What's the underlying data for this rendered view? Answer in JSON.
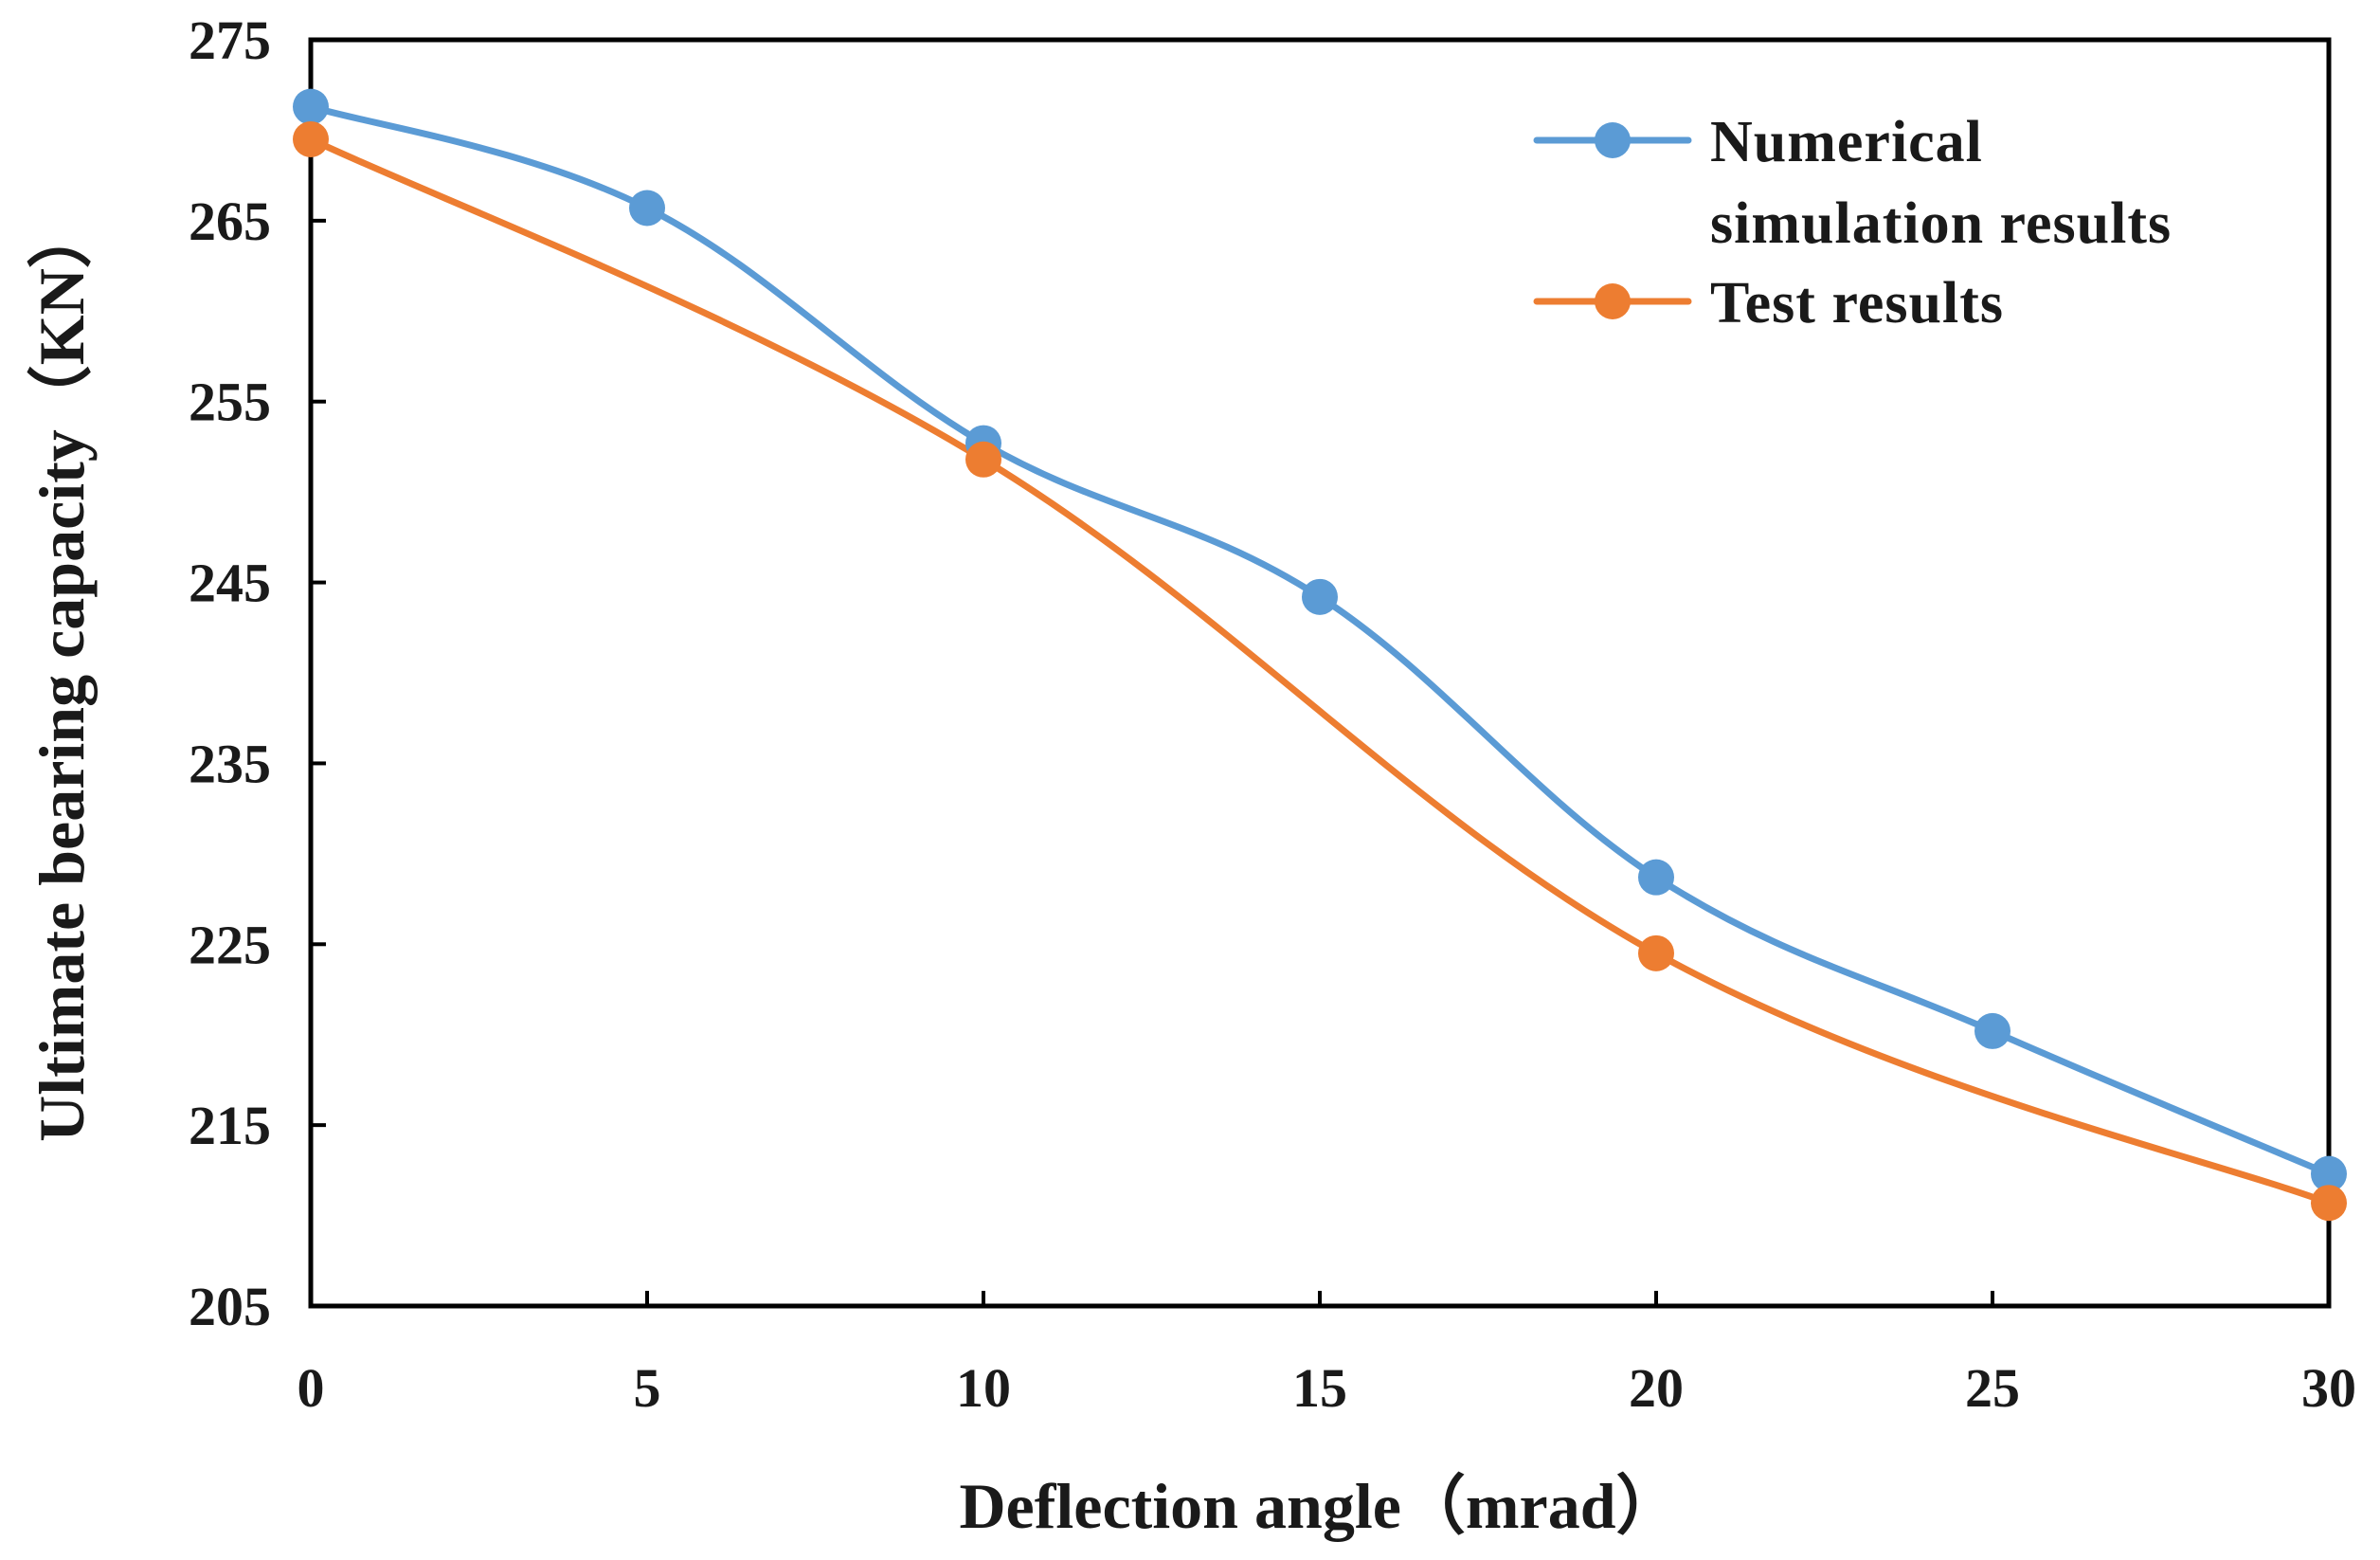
{
  "chart_data": {
    "type": "line",
    "title": "",
    "xlabel": "Deflection angle（mrad）",
    "ylabel": "Ultimate bearing capacity（KN）",
    "x": [
      0,
      5,
      10,
      15,
      20,
      25,
      30
    ],
    "xlim": [
      0,
      30
    ],
    "ylim": [
      205,
      275
    ],
    "xticks": [
      "0",
      "5",
      "10",
      "15",
      "20",
      "25",
      "30"
    ],
    "yticks": [
      "205",
      "215",
      "225",
      "235",
      "245",
      "255",
      "265",
      "275"
    ],
    "grid": false,
    "legend_position": "top-right",
    "series": [
      {
        "name": "Numerical simulation results",
        "legend_lines": [
          "Numerical",
          "simulation results"
        ],
        "color": "#5B9BD5",
        "values": [
          271.3,
          265.7,
          252.7,
          244.2,
          228.7,
          220.2,
          212.3
        ]
      },
      {
        "name": "Test results",
        "legend_lines": [
          "Test results"
        ],
        "color": "#ED7D31",
        "values": [
          269.5,
          null,
          251.8,
          null,
          224.5,
          null,
          210.7
        ]
      }
    ]
  }
}
